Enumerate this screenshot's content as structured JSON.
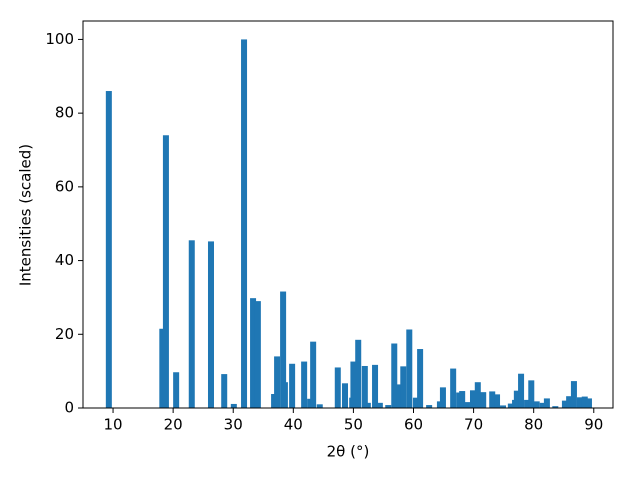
{
  "chart_data": {
    "type": "bar",
    "xlabel": "2θ (°)",
    "ylabel": "Intensities (scaled)",
    "x": [
      9.3,
      18.2,
      18.8,
      20.5,
      23.1,
      26.3,
      28.5,
      30.1,
      31.8,
      33.3,
      34.1,
      36.8,
      37.3,
      38.3,
      38.6,
      39.8,
      41.8,
      42.8,
      43.3,
      44.4,
      47.4,
      48.6,
      49.8,
      50.0,
      50.8,
      51.9,
      52.4,
      53.6,
      54.4,
      55.8,
      56.8,
      57.6,
      58.3,
      59.3,
      60.4,
      61.1,
      62.6,
      64.4,
      64.9,
      66.6,
      67.6,
      68.1,
      68.9,
      69.9,
      70.7,
      71.6,
      73.1,
      73.9,
      74.9,
      76.2,
      76.9,
      77.2,
      77.9,
      78.9,
      79.6,
      80.5,
      81.5,
      82.2,
      83.6,
      85.2,
      85.9,
      86.7,
      87.7,
      88.5,
      89.2
    ],
    "values": [
      86,
      21.5,
      74,
      9.7,
      45.5,
      45.2,
      9.2,
      1.1,
      100,
      29.8,
      29,
      3.8,
      14,
      31.6,
      7,
      12,
      12.6,
      2.5,
      18,
      1,
      11,
      6.7,
      2.8,
      12.6,
      18.5,
      11.4,
      1.4,
      11.7,
      1.4,
      0.8,
      17.5,
      6.4,
      11.3,
      21.3,
      2.8,
      16,
      0.8,
      1.8,
      5.6,
      10.7,
      4.2,
      4.6,
      1.6,
      4.8,
      7,
      4.3,
      4.5,
      3.7,
      0.7,
      1.2,
      2.2,
      4.7,
      9.3,
      2.2,
      7.5,
      1.8,
      1.4,
      2.6,
      0.5,
      2,
      3.2,
      7.3,
      2.9,
      3.1,
      2.6
    ],
    "color": "#1f77b4",
    "xlim": [
      5,
      93.2
    ],
    "xticks": [
      10,
      20,
      30,
      40,
      50,
      60,
      70,
      80,
      90
    ],
    "ylim": [
      0,
      105
    ],
    "yticks": [
      0,
      20,
      40,
      60,
      80,
      100
    ]
  }
}
